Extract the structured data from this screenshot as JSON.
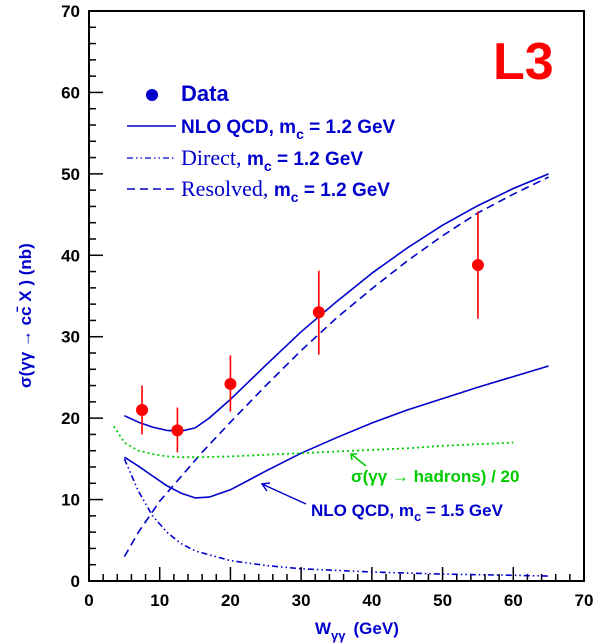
{
  "chart_data": {
    "type": "line",
    "badge": "L3",
    "xlabel": "W",
    "xlabel_sub": "γγ",
    "xlabel_unit": "(GeV)",
    "ylabel": "σ(γγ → cc̄ X )  (nb)",
    "xlim": [
      0,
      70
    ],
    "ylim": [
      0,
      70
    ],
    "x_ticks": [
      "0",
      "10",
      "20",
      "30",
      "40",
      "50",
      "60",
      "70"
    ],
    "y_ticks": [
      "0",
      "10",
      "20",
      "30",
      "40",
      "50",
      "60",
      "70"
    ],
    "grid": false,
    "legend": {
      "placement": "top-left",
      "data": "Data",
      "nlo_main": "NLO QCD, m",
      "nlo_sub": "c",
      "nlo_value": " = 1.2 GeV",
      "direct_main": "Direct, ",
      "direct_m": "m",
      "direct_sub": "c",
      "direct_value": " = 1.2 GeV",
      "resolved_main": "Resolved, ",
      "resolved_m": "m",
      "resolved_sub": "c",
      "resolved_value": " = 1.2 GeV"
    },
    "annotations": {
      "hadrons": "σ(γγ → hadrons) / 20",
      "nlo15_main": "NLO QCD, m",
      "nlo15_sub": "c",
      "nlo15_value": " = 1.5 GeV"
    },
    "data_points": [
      {
        "x": 7.5,
        "y": 21.0,
        "y_low": 18.0,
        "y_high": 24.0
      },
      {
        "x": 12.5,
        "y": 18.5,
        "y_low": 15.8,
        "y_high": 21.3
      },
      {
        "x": 20.0,
        "y": 24.2,
        "y_low": 20.8,
        "y_high": 27.7
      },
      {
        "x": 32.5,
        "y": 33.0,
        "y_low": 27.8,
        "y_high": 38.1
      },
      {
        "x": 55.0,
        "y": 38.8,
        "y_low": 32.2,
        "y_high": 45.4
      }
    ],
    "series": [
      {
        "name": "NLO QCD, m_c = 1.2 GeV",
        "style": "solid",
        "color": "#0000cc",
        "x": [
          5,
          7,
          9,
          11,
          13,
          15,
          17,
          20,
          25,
          30,
          35,
          40,
          45,
          50,
          55,
          60,
          65
        ],
        "y": [
          20.3,
          19.5,
          18.9,
          18.5,
          18.4,
          18.8,
          20.0,
          22.3,
          26.5,
          30.6,
          34.3,
          37.8,
          40.9,
          43.7,
          46.1,
          48.2,
          50.0
        ]
      },
      {
        "name": "Direct, m_c = 1.2 GeV",
        "style": "dashdot",
        "color": "#0000cc",
        "x": [
          5,
          7,
          9,
          11,
          13,
          15,
          20,
          25,
          30,
          40,
          50,
          60,
          65
        ],
        "y": [
          15.0,
          11.0,
          8.0,
          6.0,
          4.6,
          3.7,
          2.5,
          1.9,
          1.5,
          1.1,
          0.85,
          0.7,
          0.6
        ]
      },
      {
        "name": "Resolved, m_c = 1.2 GeV",
        "style": "dashed",
        "color": "#0000cc",
        "x": [
          5,
          7,
          10,
          13,
          16,
          20,
          25,
          30,
          35,
          40,
          45,
          50,
          55,
          60,
          65
        ],
        "y": [
          3.0,
          6.0,
          9.8,
          12.8,
          15.8,
          19.5,
          24.0,
          28.3,
          32.3,
          35.9,
          39.3,
          42.4,
          45.2,
          47.5,
          49.6
        ]
      },
      {
        "name": "NLO QCD, m_c = 1.5 GeV",
        "style": "solid",
        "color": "#0000cc",
        "x": [
          5,
          7,
          9,
          11,
          13,
          15,
          17,
          20,
          25,
          30,
          35,
          40,
          45,
          50,
          55,
          60,
          65
        ],
        "y": [
          15.2,
          14.1,
          12.9,
          11.7,
          10.8,
          10.2,
          10.3,
          11.2,
          13.5,
          15.7,
          17.6,
          19.4,
          21.0,
          22.4,
          23.8,
          25.1,
          26.4
        ]
      },
      {
        "name": "σ(γγ → hadrons) / 20",
        "style": "dotted",
        "color": "#00cc00",
        "x": [
          3.5,
          5,
          7,
          9,
          11,
          13,
          15,
          20,
          25,
          30,
          35,
          40,
          45,
          50,
          55,
          60
        ],
        "y": [
          19.0,
          17.0,
          16.0,
          15.6,
          15.3,
          15.2,
          15.2,
          15.3,
          15.5,
          15.7,
          15.9,
          16.1,
          16.3,
          16.6,
          16.8,
          17.0
        ]
      }
    ],
    "colors": {
      "axis": "#000000",
      "theory": "#0000cc",
      "data": "#ff0000",
      "hadrons": "#00cc00",
      "badge": "#ff0000"
    }
  }
}
